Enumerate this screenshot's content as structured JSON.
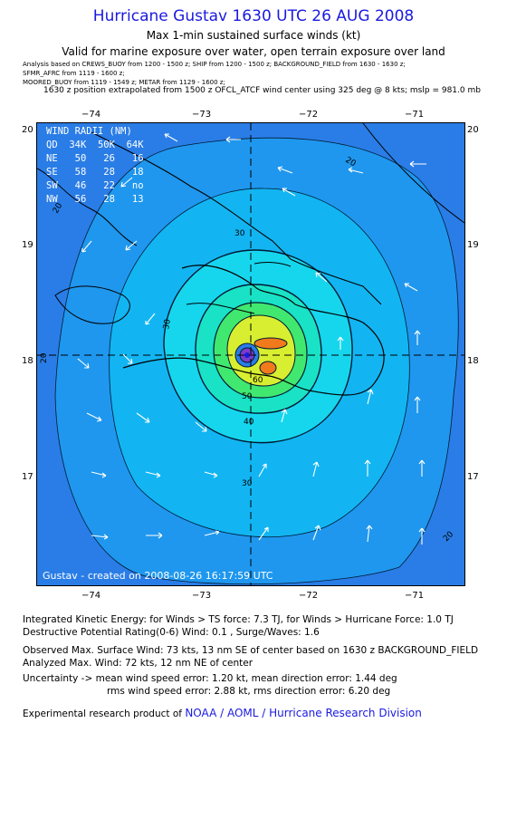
{
  "title": "Hurricane Gustav 1630 UTC 26 AUG 2008",
  "subtitle1": "Max 1-min sustained surface winds (kt)",
  "subtitle2": "Valid for marine exposure over water, open terrain exposure over land",
  "analysis_lines": [
    "Analysis based on   CREWS_BUOY from 1200 - 1500 z;   SHIP from 1200 - 1500 z;   BACKGROUND_FIELD from 1630 - 1630 z;",
    "SFMR_AFRC from 1119 - 1600 z;",
    "MOORED_BUOY from 1119 - 1549 z;   METAR from 1129 - 1600 z;"
  ],
  "position_line": "1630 z position extrapolated from 1500 z OFCL_ATCF wind center using 325 deg @ 8 kts; mslp = 981.0 mb",
  "lon_labels": [
    "−74",
    "−73",
    "−72",
    "−71"
  ],
  "lat_labels": [
    "20",
    "19",
    "18",
    "17"
  ],
  "wind_radii": {
    "title": "WIND RADII (NM)",
    "header": [
      "QD",
      "34K",
      "50K",
      "64K"
    ],
    "rows": [
      [
        "NE",
        "50",
        "26",
        "16"
      ],
      [
        "SE",
        "58",
        "28",
        "18"
      ],
      [
        "SW",
        "46",
        "22",
        "no"
      ],
      [
        "NW",
        "56",
        "28",
        "13"
      ]
    ]
  },
  "contour_labels": [
    "20",
    "20",
    "20",
    "20",
    "30",
    "30",
    "30",
    "40",
    "50",
    "60"
  ],
  "credit": "Gustav - created on 2008-08-26 16:17:59 UTC",
  "stats": {
    "ike": "Integrated Kinetic Energy:  for Winds > TS force: 7.3 TJ,  for Winds > Hurricane Force: 1.0 TJ",
    "dpr": "Destructive Potential Rating(0-6)   Wind: 0.1 , Surge/Waves: 1.6",
    "obs": "Observed Max. Surface Wind: 73 kts, 13 nm SE of center based on 1630 z BACKGROUND_FIELD",
    "analyzed": "Analyzed Max. Wind: 72 kts, 12 nm NE of center",
    "unc1": "Uncertainty -> mean wind speed error: 1.20 kt,   mean direction error: 1.44 deg",
    "unc2": "rms wind speed error: 2.88 kt,   rms direction error: 6.20 deg",
    "footer_prefix": "Experimental research product of",
    "footer_org": "NOAA / AOML / Hurricane Research Division"
  },
  "colors": {
    "title": "#1a1adf",
    "ocean_outer": "#2a7de6",
    "band_20": "#1f97ee",
    "band_30": "#12b5f2",
    "band_40": "#16d6ee",
    "band_50": "#19e2c6",
    "band_60": "#40e870",
    "band_inner": "#d8ee30",
    "core": "#f07a1c",
    "eye": "#7a3cc8"
  }
}
